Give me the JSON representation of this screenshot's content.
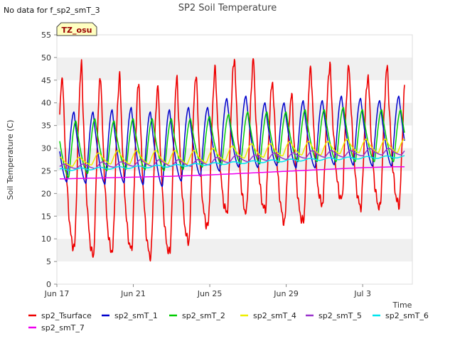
{
  "header": {
    "no_data_note": "No data for f_sp2_smT_3",
    "site_badge": "TZ_osu"
  },
  "chart_data": {
    "type": "line",
    "title": "SP2 Soil Temperature",
    "xlabel": "Time",
    "ylabel": "Soil Temperature (C)",
    "ylim": [
      0,
      55
    ],
    "yticks": [
      0,
      5,
      10,
      15,
      20,
      25,
      30,
      35,
      40,
      45,
      50,
      55
    ],
    "xlim_days": [
      0,
      18.6
    ],
    "xticks": [
      {
        "label": "Jun 17",
        "day": 0
      },
      {
        "label": "Jun 21",
        "day": 4
      },
      {
        "label": "Jun 25",
        "day": 8
      },
      {
        "label": "Jun 29",
        "day": 12
      },
      {
        "label": "Jul 3",
        "day": 16
      }
    ],
    "grid": "horizontal bands",
    "series": [
      {
        "name": "sp2_Tsurface",
        "color": "#ee0000",
        "days": [
          0.3,
          1.3,
          2.3,
          3.3,
          4.3,
          5.3,
          6.3,
          7.3,
          8.3,
          9.3,
          10.3,
          11.3,
          12.3,
          13.3,
          14.3,
          15.3,
          16.3,
          17.3
        ],
        "daily_max": [
          46,
          48.5,
          46,
          46,
          44.5,
          44,
          45.5,
          46.5,
          47.5,
          50,
          49.5,
          44.5,
          42,
          48,
          48.5,
          48,
          46,
          48
        ],
        "daily_min": [
          8.5,
          7.5,
          5.5,
          8.5,
          7,
          5.5,
          8,
          10.5,
          14.5,
          17,
          15,
          17.5,
          11,
          16,
          19,
          18.5,
          16,
          17.5
        ]
      },
      {
        "name": "sp2_smT_1",
        "color": "#0000cc",
        "days": [
          0.9,
          1.9,
          2.9,
          3.9,
          4.9,
          5.9,
          6.9,
          7.9,
          8.9,
          9.9,
          10.9,
          11.9,
          12.9,
          13.9,
          14.9,
          15.9,
          16.9,
          17.9
        ],
        "daily_max": [
          38,
          38,
          38.5,
          39,
          38,
          38.5,
          39,
          39,
          41,
          41.5,
          40,
          40,
          40.5,
          40.5,
          41.5,
          41,
          40.5,
          41.5
        ],
        "daily_min": [
          22.5,
          22,
          22,
          22.5,
          21.5,
          21.5,
          23.5,
          24,
          25.5,
          26,
          25.5,
          26.5,
          25,
          26,
          26.5,
          26,
          26,
          26
        ]
      },
      {
        "name": "sp2_smT_2",
        "color": "#00cc00",
        "days": [
          1.0,
          2.0,
          3.0,
          4.0,
          5.0,
          6.0,
          7.0,
          8.0,
          9.0,
          10.0,
          11.0,
          12.0,
          13.0,
          14.0,
          15.0,
          16.0,
          17.0,
          18.0
        ],
        "daily_max": [
          36,
          36.5,
          36,
          36.5,
          36.5,
          36.5,
          36.5,
          37,
          37.5,
          38,
          38,
          38,
          38.5,
          38.5,
          39,
          38.5,
          38.5,
          38.5
        ],
        "daily_min": [
          23.5,
          25,
          25,
          25.5,
          25,
          25,
          25.5,
          26,
          26.5,
          26.5,
          26.5,
          27,
          27,
          27,
          27,
          27,
          27,
          27
        ]
      },
      {
        "name": "sp2_smT_4",
        "color": "#eeee00",
        "days": [
          1.2,
          2.2,
          3.2,
          4.2,
          5.2,
          6.2,
          7.2,
          8.2,
          9.2,
          10.2,
          11.2,
          12.2,
          13.2,
          14.2,
          15.2,
          16.2,
          17.2,
          18.2
        ],
        "daily_max": [
          28,
          29,
          29.5,
          29.5,
          29.5,
          29.5,
          29.5,
          30,
          30.5,
          31,
          31,
          31.5,
          31.5,
          31.5,
          32,
          32,
          32,
          32
        ],
        "daily_min": [
          26,
          26.5,
          26.5,
          26.5,
          26.5,
          26.5,
          26.5,
          27,
          27.5,
          28,
          28,
          28.5,
          28.5,
          28.5,
          29,
          29,
          29,
          29
        ]
      },
      {
        "name": "sp2_smT_5",
        "color": "#9933cc",
        "days": [
          1.4,
          2.4,
          3.4,
          4.4,
          5.4,
          6.4,
          7.4,
          8.4,
          9.4,
          10.4,
          11.4,
          12.4,
          13.4,
          14.4,
          15.4,
          16.4,
          17.4,
          18.4
        ],
        "daily_max": [
          26.5,
          27,
          27,
          27.5,
          27.5,
          27.5,
          27.5,
          28,
          28.5,
          28.5,
          29,
          29,
          29.5,
          29.5,
          29.5,
          30,
          30,
          30
        ],
        "daily_min": [
          25.5,
          25.5,
          26,
          26,
          26,
          26,
          26,
          26.5,
          27,
          27,
          27.5,
          27.5,
          28,
          28,
          28,
          28.5,
          28.5,
          28.5
        ]
      },
      {
        "name": "sp2_smT_6",
        "color": "#00e5ee",
        "x": [
          0,
          2,
          4,
          6,
          8,
          10,
          12,
          14,
          16,
          17.8
        ],
        "values": [
          25.2,
          25.5,
          25.8,
          26.1,
          26.5,
          26.9,
          27.3,
          27.6,
          27.9,
          28.1
        ],
        "ripple": 0.25
      },
      {
        "name": "sp2_smT_7",
        "color": "#ee00ee",
        "x": [
          0,
          2,
          4,
          6,
          8,
          10,
          12,
          14,
          16,
          17.8
        ],
        "values": [
          23.2,
          23.4,
          23.6,
          23.8,
          24.1,
          24.5,
          24.9,
          25.3,
          25.7,
          25.9
        ],
        "ripple": 0
      }
    ]
  }
}
